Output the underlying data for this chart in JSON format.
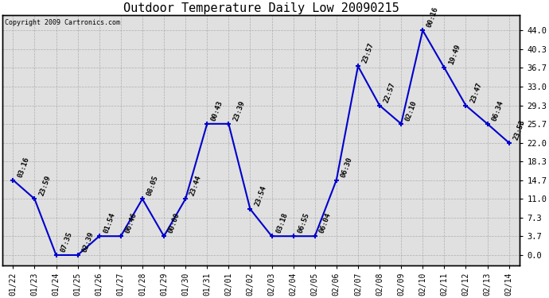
{
  "title": "Outdoor Temperature Daily Low 20090215",
  "copyright": "Copyright 2009 Cartronics.com",
  "x_labels": [
    "01/22",
    "01/23",
    "01/24",
    "01/25",
    "01/26",
    "01/27",
    "01/28",
    "01/29",
    "01/30",
    "01/31",
    "02/01",
    "02/02",
    "02/03",
    "02/04",
    "02/05",
    "02/06",
    "02/07",
    "02/08",
    "02/09",
    "02/10",
    "02/11",
    "02/12",
    "02/13",
    "02/14"
  ],
  "y_values": [
    14.7,
    11.0,
    0.0,
    0.0,
    3.7,
    3.7,
    11.0,
    3.7,
    11.0,
    25.7,
    25.7,
    9.0,
    3.7,
    3.7,
    3.7,
    14.7,
    37.0,
    29.3,
    25.7,
    44.0,
    36.7,
    29.3,
    25.7,
    22.0
  ],
  "annotations": [
    "03:16",
    "23:59",
    "07:35",
    "02:39",
    "01:54",
    "06:46",
    "08:05",
    "00:00",
    "23:44",
    "00:43",
    "23:39",
    "23:54",
    "03:18",
    "06:55",
    "06:04",
    "06:30",
    "23:57",
    "22:57",
    "02:10",
    "00:16",
    "19:49",
    "23:47",
    "06:34",
    "23:53"
  ],
  "y_ticks": [
    0.0,
    3.7,
    7.3,
    11.0,
    14.7,
    18.3,
    22.0,
    25.7,
    29.3,
    33.0,
    36.7,
    40.3,
    44.0
  ],
  "line_color": "#0000cc",
  "marker_color": "#0000cc",
  "bg_color": "#e0e0e0",
  "grid_color": "#999999",
  "title_fontsize": 11,
  "annotation_fontsize": 6.5,
  "ylim": [
    -2,
    47
  ],
  "figwidth": 6.9,
  "figheight": 3.75,
  "dpi": 100
}
